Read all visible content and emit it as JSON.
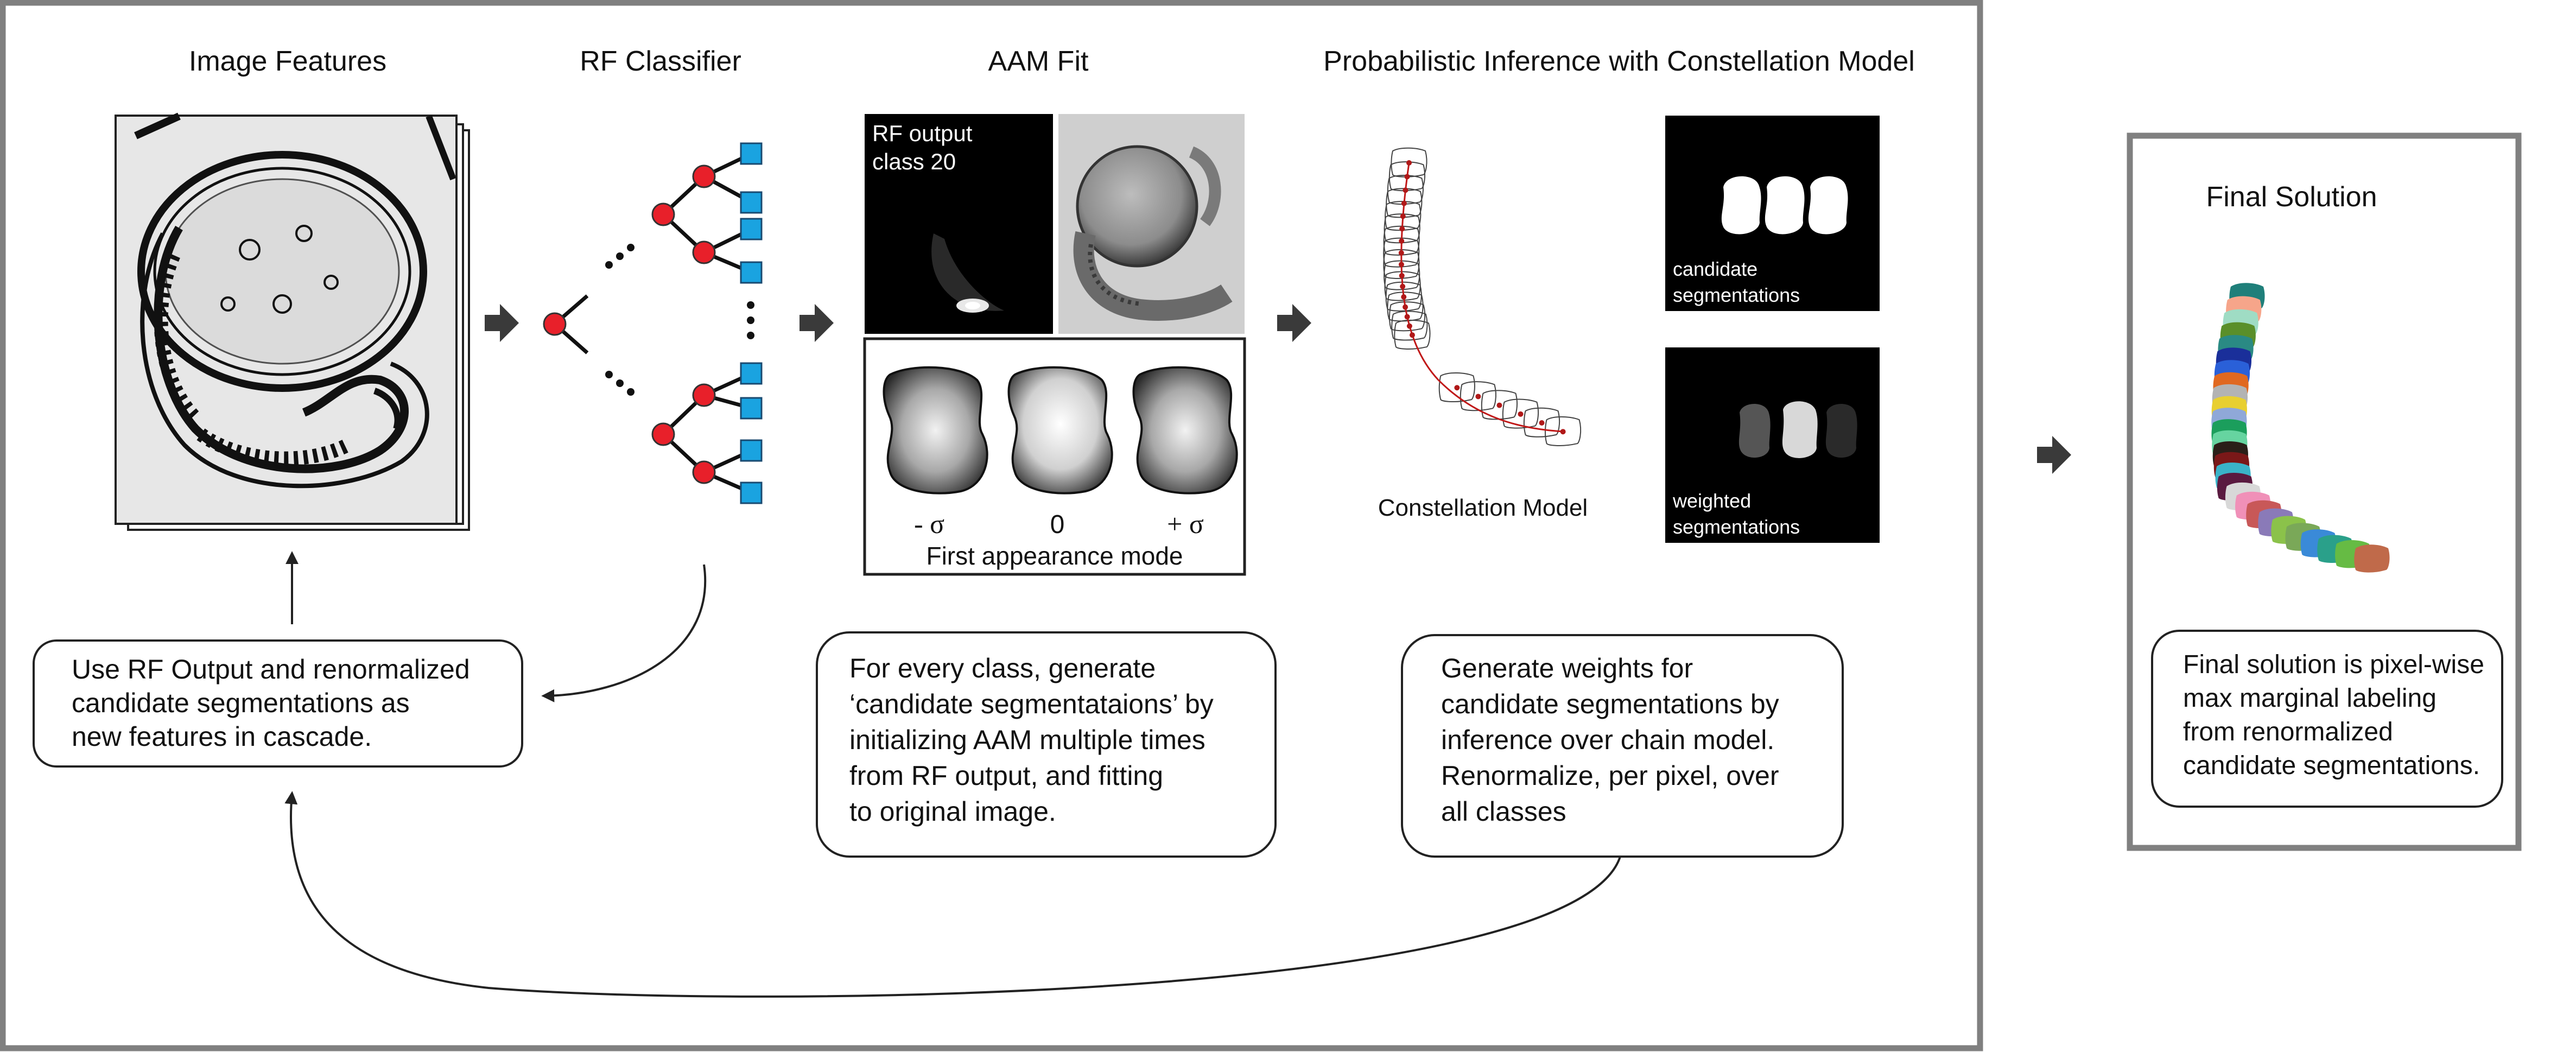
{
  "sections": {
    "image_features": "Image Features",
    "rf_classifier": "RF Classifier",
    "aam_fit": "AAM Fit",
    "inference": "Probabilistic Inference with Constellation Model",
    "final": "Final Solution"
  },
  "rf_output": {
    "line1": "RF output",
    "line2": "class 20"
  },
  "appearance": {
    "minus": "- σ",
    "zero": "0",
    "plus": "+ σ",
    "caption": "First appearance mode"
  },
  "constellation_label": "Constellation Model",
  "candidate": {
    "line1": "candidate",
    "line2": "segmentations"
  },
  "weighted": {
    "line1": "weighted",
    "line2": "segmentations"
  },
  "notes": {
    "cascade": [
      "Use RF Output and renormalized",
      "candidate segmentations as",
      "new features in cascade."
    ],
    "aam": [
      "For every class, generate",
      "‘candidate segmentataions’ by",
      "initializing AAM multiple times",
      "from RF output, and fitting",
      "to original image."
    ],
    "weights": [
      "Generate weights for",
      "candidate segmentations by",
      "inference over chain model.",
      "Renormalize, per pixel, over",
      "all classes"
    ],
    "final": [
      "Final solution is pixel-wise",
      "max marginal labeling",
      "from renormalized",
      "candidate segmentations."
    ]
  },
  "colors": {
    "frame": "#808080",
    "node_red": "#e8202a",
    "leaf_blue": "#1aa3e0",
    "arrow": "#3a3a3a",
    "chain_dot": "#b01818"
  },
  "segment_colors": [
    "#1f7f7a",
    "#f6a58a",
    "#9fdcc4",
    "#5a8f2a",
    "#2a8a84",
    "#1a2f9a",
    "#2a60d8",
    "#e06820",
    "#b3b3b3",
    "#e8cf30",
    "#8fa8d8",
    "#1b9e5c",
    "#66d4a0",
    "#2a1f18",
    "#7a1818",
    "#3ab3c8",
    "#5a1a40",
    "#d8d8d8",
    "#f090b8",
    "#c85858",
    "#8a7ab8",
    "#8bc24a",
    "#7aa858",
    "#3a8ad8",
    "#2aa08a",
    "#66bb44",
    "#c06a4a"
  ]
}
